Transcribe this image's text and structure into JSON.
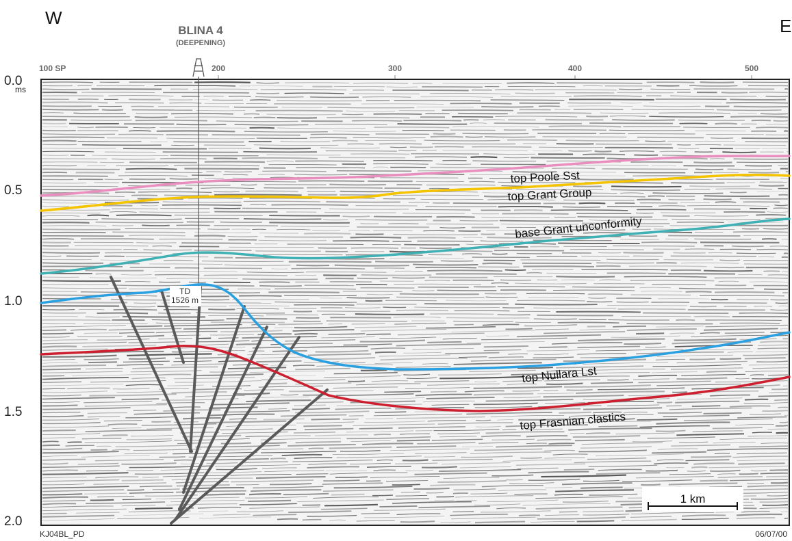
{
  "directions": {
    "west": "W",
    "east": "E"
  },
  "well": {
    "name": "BLINA 4",
    "note": "(DEEPENING)",
    "td_label": "TD",
    "td_depth": "1526 m"
  },
  "time_axis": {
    "unit": "ms",
    "ticks": [
      "0.0",
      "0.5",
      "1.0",
      "1.5",
      "2.0"
    ]
  },
  "sp_axis": {
    "first": "100 SP",
    "ticks": [
      "200",
      "300",
      "400",
      "500"
    ]
  },
  "horizons": [
    {
      "name": "top Poole Sst",
      "color": "#e98fbf"
    },
    {
      "name": "top Grant Group",
      "color": "#f5c400"
    },
    {
      "name": "base Grant unconformity",
      "color": "#3fb0b3"
    },
    {
      "name": "top Nullara Lst",
      "color": "#2aa0e0"
    },
    {
      "name": "top Frasnian clastics",
      "color": "#cc2030"
    }
  ],
  "scale_bar": {
    "label": "1 km"
  },
  "footer": {
    "left": "KJ04BL_PD",
    "right": "06/07/00"
  }
}
